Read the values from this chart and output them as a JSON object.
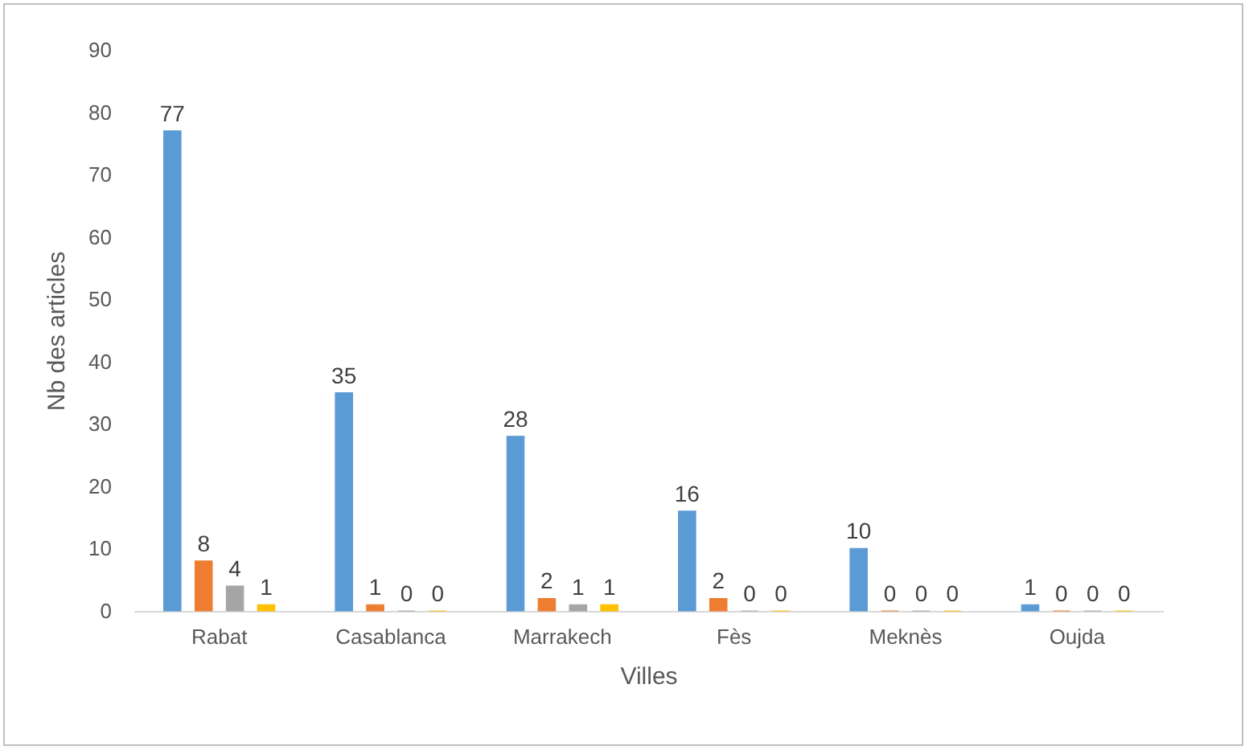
{
  "chart_data": {
    "type": "bar",
    "xlabel": "Villes",
    "ylabel": "Nb des articles",
    "categories": [
      "Rabat",
      "Casablanca",
      "Marrakech",
      "Fès",
      "Meknès",
      "Oujda"
    ],
    "series": [
      {
        "color": "#5b9bd5",
        "values": [
          77,
          35,
          28,
          16,
          10,
          1
        ]
      },
      {
        "color": "#ed7d31",
        "values": [
          8,
          1,
          2,
          2,
          0,
          0
        ]
      },
      {
        "color": "#a5a5a5",
        "values": [
          4,
          0,
          1,
          0,
          0,
          0
        ]
      },
      {
        "color": "#ffc000",
        "values": [
          1,
          0,
          1,
          0,
          0,
          0
        ]
      }
    ],
    "ylim": [
      0,
      90
    ],
    "yticks": [
      0,
      10,
      20,
      30,
      40,
      50,
      60,
      70,
      80,
      90
    ],
    "data_labels": true,
    "grid": false,
    "legend": false
  }
}
